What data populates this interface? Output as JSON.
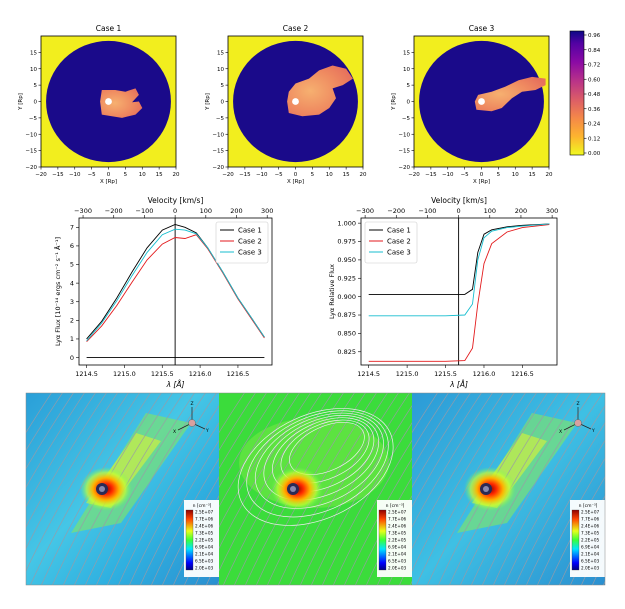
{
  "chart_data": [
    {
      "type": "heatmap",
      "title": "Case 1",
      "xlabel": "X [Rp]",
      "ylabel": "Y [Rp]",
      "xlim": [
        -20,
        20
      ],
      "ylim": [
        -20,
        20
      ],
      "xticks": [
        "−20",
        "−15",
        "−10",
        "−5",
        "0",
        "5",
        "10",
        "15",
        "20"
      ],
      "yticks": [
        "15",
        "10",
        "5",
        "0",
        "−5",
        "−10",
        "−15",
        "−20"
      ]
    },
    {
      "type": "heatmap",
      "title": "Case 2",
      "xlabel": "X [Rp]",
      "ylabel": "Y [Rp]",
      "xlim": [
        -20,
        20
      ],
      "ylim": [
        -20,
        20
      ],
      "xticks": [
        "−20",
        "−15",
        "−10",
        "−5",
        "0",
        "5",
        "10",
        "15",
        "20"
      ],
      "yticks": [
        "15",
        "10",
        "5",
        "0",
        "−5",
        "−10",
        "−15",
        "−20"
      ]
    },
    {
      "type": "heatmap",
      "title": "Case 3",
      "xlabel": "X [Rp]",
      "ylabel": "Y [Rp]",
      "xlim": [
        -20,
        20
      ],
      "ylim": [
        -20,
        20
      ],
      "xticks": [
        "−20",
        "−15",
        "−10",
        "−5",
        "0",
        "5",
        "10",
        "15",
        "20"
      ],
      "yticks": [
        "15",
        "10",
        "5",
        "0",
        "−5",
        "−10",
        "−15",
        "−20"
      ],
      "colorbar": {
        "ticks": [
          "0.96",
          "0.84",
          "0.72",
          "0.60",
          "0.48",
          "0.36",
          "0.24",
          "0.12",
          "0.00"
        ],
        "colors": [
          "#f5f31e",
          "#fbb13c",
          "#f07f4f",
          "#d8576b",
          "#b12a90",
          "#8d0fa1",
          "#5c01a6",
          "#2a0593",
          "#0d0887"
        ]
      }
    },
    {
      "type": "line",
      "xlabel": "λ [Å]",
      "ylabel": "Lyα Flux  [10⁻¹⁴ ergs cm⁻² s⁻¹ Å⁻¹]",
      "top_axis_label": "Velocity [km/s]",
      "xlim": [
        1214.4,
        1216.95
      ],
      "ylim": [
        -0.4,
        7.5
      ],
      "xticks": [
        "1214.5",
        "1215.0",
        "1215.5",
        "1216.0",
        "1216.5"
      ],
      "yticks": [
        "0",
        "1",
        "2",
        "3",
        "4",
        "5",
        "6",
        "7"
      ],
      "top_ticks": [
        "−300",
        "−200",
        "−100",
        "0",
        "100",
        "200",
        "300"
      ],
      "line_center": 1215.67,
      "legend": "top-right",
      "x": [
        1214.5,
        1214.7,
        1214.9,
        1215.1,
        1215.3,
        1215.5,
        1215.67,
        1215.8,
        1215.95,
        1216.1,
        1216.3,
        1216.5,
        1216.7,
        1216.85
      ],
      "series": [
        {
          "name": "Case 1",
          "color": "#000000",
          "values": [
            1.0,
            1.95,
            3.2,
            4.6,
            5.9,
            6.85,
            7.15,
            7.0,
            6.7,
            5.9,
            4.6,
            3.2,
            2.0,
            1.1
          ]
        },
        {
          "name": "Case 2",
          "color": "#e31a1c",
          "values": [
            0.85,
            1.7,
            2.8,
            4.05,
            5.25,
            6.1,
            6.45,
            6.4,
            6.6,
            5.85,
            4.55,
            3.15,
            1.95,
            1.05
          ]
        },
        {
          "name": "Case 3",
          "color": "#17becf",
          "values": [
            0.9,
            1.85,
            3.05,
            4.4,
            5.65,
            6.6,
            6.9,
            6.85,
            6.65,
            5.9,
            4.6,
            3.2,
            2.0,
            1.1
          ]
        },
        {
          "name": "",
          "color": "#000000",
          "values": [
            0,
            0,
            0,
            0,
            0,
            0,
            0,
            0,
            0,
            0,
            0,
            0,
            0,
            0
          ]
        }
      ]
    },
    {
      "type": "line",
      "xlabel": "λ [Å]",
      "ylabel": "Lyα Relative Flux",
      "top_axis_label": "Velocity [km/s]",
      "xlim": [
        1214.4,
        1216.95
      ],
      "ylim": [
        0.807,
        1.007
      ],
      "xticks": [
        "1214.5",
        "1215.0",
        "1215.5",
        "1216.0",
        "1216.5"
      ],
      "yticks": [
        "0.825",
        "0.850",
        "0.875",
        "0.900",
        "0.925",
        "0.950",
        "0.975",
        "1.000"
      ],
      "top_ticks": [
        "−300",
        "−200",
        "−100",
        "0",
        "100",
        "200",
        "300"
      ],
      "line_center": 1215.67,
      "legend": "top-left",
      "x": [
        1214.5,
        1215.0,
        1215.5,
        1215.75,
        1215.85,
        1215.92,
        1216.0,
        1216.1,
        1216.3,
        1216.5,
        1216.85
      ],
      "series": [
        {
          "name": "Case 1",
          "color": "#000000",
          "values": [
            0.903,
            0.903,
            0.903,
            0.903,
            0.91,
            0.96,
            0.985,
            0.991,
            0.995,
            0.997,
            0.999
          ]
        },
        {
          "name": "Case 2",
          "color": "#e31a1c",
          "values": [
            0.812,
            0.812,
            0.812,
            0.813,
            0.83,
            0.89,
            0.945,
            0.972,
            0.988,
            0.994,
            0.998
          ]
        },
        {
          "name": "Case 3",
          "color": "#17becf",
          "values": [
            0.874,
            0.874,
            0.874,
            0.875,
            0.89,
            0.95,
            0.98,
            0.989,
            0.994,
            0.996,
            0.999
          ]
        }
      ]
    },
    {
      "type": "heatmap",
      "colorbar_title": "n [cm⁻³]",
      "colorbar_ticks": [
        "2.5E+07",
        "7.7E+06",
        "2.4E+06",
        "7.3E+05",
        "2.2E+05",
        "6.9E+04",
        "2.1E+04",
        "6.5E+03",
        "2.0E+03"
      ],
      "axes_labels": [
        "Z",
        "X",
        "Y"
      ]
    }
  ]
}
